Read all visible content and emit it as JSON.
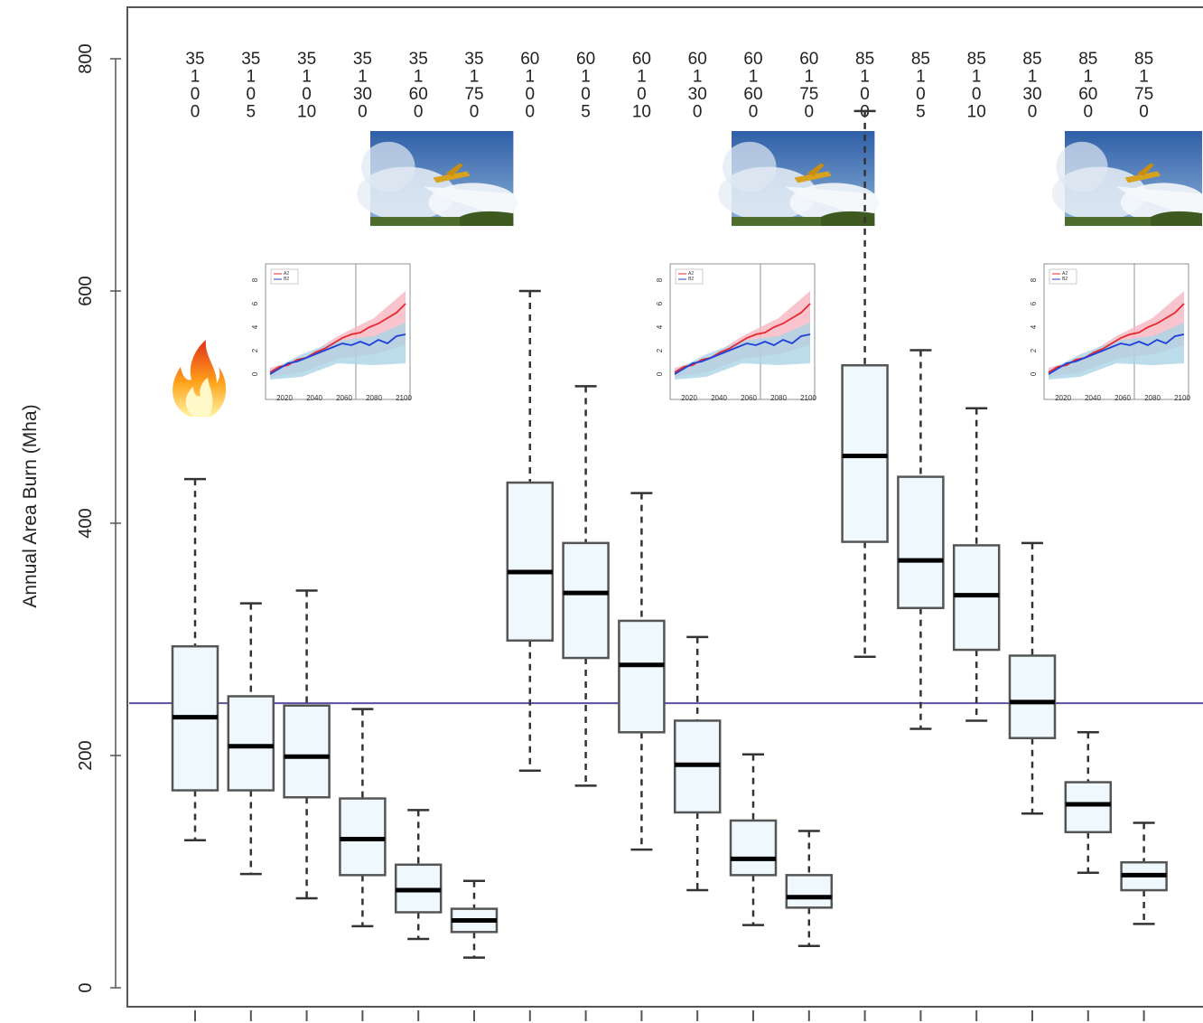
{
  "chart_data": {
    "type": "box",
    "title": "",
    "xlabel": "",
    "ylabel": "Annual Area Burn (Mha)",
    "ylim": [
      0,
      800
    ],
    "yticks": [
      0,
      200,
      400,
      600,
      800
    ],
    "reference_line": 245,
    "categories": [
      [
        "35",
        "1",
        "0",
        "0"
      ],
      [
        "35",
        "1",
        "0",
        "5"
      ],
      [
        "35",
        "1",
        "0",
        "10"
      ],
      [
        "35",
        "1",
        "30",
        "0"
      ],
      [
        "35",
        "1",
        "60",
        "0"
      ],
      [
        "35",
        "1",
        "75",
        "0"
      ],
      [
        "60",
        "1",
        "0",
        "0"
      ],
      [
        "60",
        "1",
        "0",
        "5"
      ],
      [
        "60",
        "1",
        "0",
        "10"
      ],
      [
        "60",
        "1",
        "30",
        "0"
      ],
      [
        "60",
        "1",
        "60",
        "0"
      ],
      [
        "60",
        "1",
        "75",
        "0"
      ],
      [
        "85",
        "1",
        "0",
        "0"
      ],
      [
        "85",
        "1",
        "0",
        "5"
      ],
      [
        "85",
        "1",
        "0",
        "10"
      ],
      [
        "85",
        "1",
        "30",
        "0"
      ],
      [
        "85",
        "1",
        "60",
        "0"
      ],
      [
        "85",
        "1",
        "75",
        "0"
      ]
    ],
    "boxes": [
      {
        "min": 127,
        "q1": 170,
        "median": 233,
        "q3": 294,
        "max": 438
      },
      {
        "min": 98,
        "q1": 170,
        "median": 208,
        "q3": 251,
        "max": 331
      },
      {
        "min": 77,
        "q1": 164,
        "median": 199,
        "q3": 243,
        "max": 342
      },
      {
        "min": 53,
        "q1": 97,
        "median": 128,
        "q3": 163,
        "max": 240
      },
      {
        "min": 42,
        "q1": 65,
        "median": 84,
        "q3": 106,
        "max": 153
      },
      {
        "min": 26,
        "q1": 48,
        "median": 58,
        "q3": 68,
        "max": 92
      },
      {
        "min": 187,
        "q1": 299,
        "median": 358,
        "q3": 435,
        "max": 600
      },
      {
        "min": 174,
        "q1": 284,
        "median": 340,
        "q3": 383,
        "max": 518
      },
      {
        "min": 119,
        "q1": 220,
        "median": 278,
        "q3": 316,
        "max": 426
      },
      {
        "min": 84,
        "q1": 151,
        "median": 192,
        "q3": 230,
        "max": 302
      },
      {
        "min": 54,
        "q1": 97,
        "median": 111,
        "q3": 144,
        "max": 201
      },
      {
        "min": 36,
        "q1": 69,
        "median": 78,
        "q3": 97,
        "max": 135
      },
      {
        "min": 285,
        "q1": 384,
        "median": 458,
        "q3": 536,
        "max": 755
      },
      {
        "min": 223,
        "q1": 327,
        "median": 368,
        "q3": 440,
        "max": 549
      },
      {
        "min": 230,
        "q1": 291,
        "median": 338,
        "q3": 381,
        "max": 499
      },
      {
        "min": 150,
        "q1": 215,
        "median": 246,
        "q3": 286,
        "max": 383
      },
      {
        "min": 99,
        "q1": 134,
        "median": 158,
        "q3": 177,
        "max": 220
      },
      {
        "min": 55,
        "q1": 84,
        "median": 97,
        "q3": 108,
        "max": 142
      }
    ],
    "colors": {
      "box_fill": "#eef8fd",
      "box_stroke": "#555555",
      "median": "#000000",
      "reference_line": "#5b4fa0",
      "inset_series_a": "#e8262d",
      "inset_series_b": "#1f3fd8",
      "inset_band_a": "#f6b7c2",
      "inset_band_b": "#a9d3e6"
    },
    "inset_plot": {
      "xticks": [
        "2020",
        "2040",
        "2060",
        "2080",
        "2100"
      ],
      "yticks": [
        "0",
        "2",
        "4",
        "6",
        "8"
      ],
      "legend": [
        "A2",
        "B2"
      ]
    },
    "decorations": [
      "firefighting-aircraft-photo",
      "flame-icon",
      "climate-projection-inset"
    ]
  }
}
